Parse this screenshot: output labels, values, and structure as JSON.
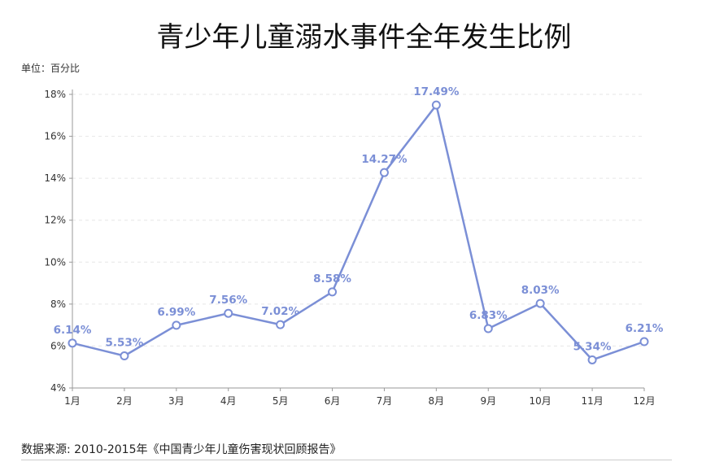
{
  "title": "青少年儿童溺水事件全年发生比例",
  "unit_label": "单位：百分比",
  "source": "数据来源: 2010-2015年《中国青少年儿童伤害现状回顾报告》",
  "colors": {
    "line": "#7b8fd6",
    "axis": "#999999",
    "grid": "#e6e6e6",
    "label": "#7b8fd6"
  },
  "chart_data": {
    "type": "line",
    "categories": [
      "1月",
      "2月",
      "3月",
      "4月",
      "5月",
      "6月",
      "7月",
      "8月",
      "9月",
      "10月",
      "11月",
      "12月"
    ],
    "values": [
      6.14,
      5.53,
      6.99,
      7.56,
      7.02,
      8.58,
      14.27,
      17.49,
      6.83,
      8.03,
      5.34,
      6.21
    ],
    "data_labels": [
      "6.14%",
      "5.53%",
      "6.99%",
      "7.56%",
      "7.02%",
      "8.58%",
      "14.27%",
      "17.49%",
      "6.83%",
      "8.03%",
      "5.34%",
      "6.21%"
    ],
    "y_ticks": [
      4,
      6,
      8,
      10,
      12,
      14,
      16,
      18
    ],
    "y_tick_labels": [
      "4%",
      "6%",
      "8%",
      "10%",
      "12%",
      "14%",
      "16%",
      "18%"
    ],
    "ylim": [
      4,
      18
    ],
    "grid": true,
    "legend": "none"
  }
}
